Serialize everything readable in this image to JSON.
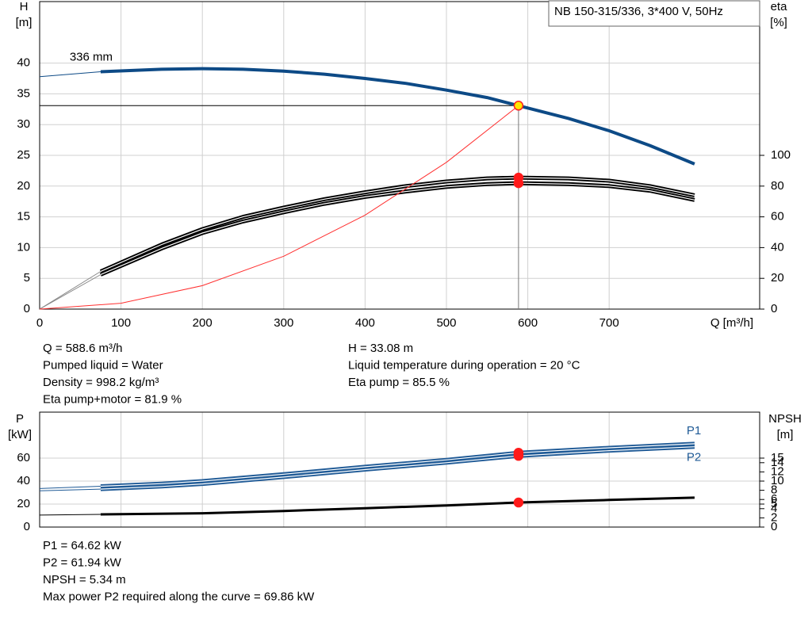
{
  "chart_data": [
    {
      "type": "line",
      "title": "NB 150-315/336, 3*400 V, 50Hz",
      "ylabel": "H",
      "yunit": "[m]",
      "y2label": "eta",
      "y2unit": "[%]",
      "xlabel": "Q [m³/h]",
      "xlim": [
        0,
        885
      ],
      "xticks": [
        0,
        100,
        200,
        300,
        400,
        500,
        600,
        700
      ],
      "show_xtick_labels": true,
      "ylim": [
        0,
        50
      ],
      "yticks": [
        0,
        5,
        10,
        15,
        20,
        25,
        30,
        35,
        40
      ],
      "y2lim": [
        0,
        200
      ],
      "y2ticks": [
        0,
        20,
        40,
        60,
        80,
        100
      ],
      "grid": true,
      "operating_q": 588.6,
      "guide_lines": true,
      "series": [
        {
          "name": "336 mm",
          "color": "#0d4a86",
          "width": 4,
          "axis": "y",
          "label_at": "start",
          "marker_color": "#ffe600",
          "marker_stroke": "#ff2020",
          "x": [
            75,
            150,
            200,
            250,
            300,
            350,
            400,
            450,
            500,
            550,
            588.6,
            650,
            700,
            750,
            805
          ],
          "values": [
            38.6,
            39.0,
            39.1,
            39.0,
            38.7,
            38.2,
            37.5,
            36.7,
            35.6,
            34.4,
            33.08,
            31.0,
            29.0,
            26.6,
            23.6
          ]
        },
        {
          "color": "#0d4a86",
          "width": 1,
          "axis": "y",
          "x": [
            0,
            75
          ],
          "values": [
            37.8,
            38.6
          ]
        },
        {
          "color": "#000000",
          "width": 5,
          "double": true,
          "axis": "y2",
          "marker_color": "#ff1a1a",
          "x": [
            75,
            150,
            200,
            250,
            300,
            350,
            400,
            450,
            500,
            550,
            588.6,
            650,
            700,
            750,
            805
          ],
          "values": [
            24.5,
            42,
            52,
            60,
            66,
            71.5,
            76,
            80,
            83,
            85,
            85.5,
            85,
            83.5,
            80,
            74
          ]
        },
        {
          "color": "#000000",
          "width": 5,
          "double": true,
          "axis": "y2",
          "marker_color": "#ff1a1a",
          "x": [
            75,
            150,
            200,
            250,
            300,
            350,
            400,
            450,
            500,
            550,
            588.6,
            650,
            700,
            750,
            805
          ],
          "values": [
            22.4,
            39.5,
            49.5,
            57,
            63,
            68.5,
            73,
            76.5,
            79.5,
            81.3,
            81.9,
            81.3,
            80,
            77,
            71
          ]
        },
        {
          "color": "#888888",
          "width": 1,
          "axis": "y2",
          "x": [
            0,
            75
          ],
          "values": [
            0,
            24.5
          ]
        },
        {
          "color": "#888888",
          "width": 1,
          "axis": "y2",
          "x": [
            0,
            75
          ],
          "values": [
            0,
            22.4
          ]
        },
        {
          "color": "#ff3030",
          "width": 1,
          "axis": "y",
          "x": [
            0,
            100,
            200,
            300,
            400,
            500,
            588.6
          ],
          "values": [
            0,
            0.95,
            3.82,
            8.59,
            15.28,
            23.87,
            33.08
          ]
        }
      ]
    },
    {
      "type": "line",
      "ylabel": "P",
      "yunit": "[kW]",
      "y2label": "NPSH",
      "y2unit": "[m]",
      "xlim": [
        0,
        885
      ],
      "xticks": [
        0,
        100,
        200,
        300,
        400,
        500,
        600,
        700
      ],
      "show_xtick_labels": false,
      "ylim": [
        0,
        100
      ],
      "yticks": [
        0,
        20,
        40,
        60
      ],
      "y2lim": [
        0,
        25
      ],
      "y2ticks": [
        0,
        2,
        4,
        5,
        6,
        8,
        10,
        12,
        14,
        15
      ],
      "grid": true,
      "operating_q": 588.6,
      "guide_lines": false,
      "series": [
        {
          "name": "P1",
          "color": "#1f5a96",
          "width": 5,
          "double": true,
          "axis": "y",
          "label_at": "end-above",
          "marker_color": "#ff1a1a",
          "x": [
            75,
            150,
            200,
            300,
            400,
            500,
            588.6,
            700,
            805
          ],
          "values": [
            35.5,
            37.8,
            40,
            46,
            52.5,
            58.5,
            64.62,
            69,
            72.5
          ]
        },
        {
          "name": "P2",
          "color": "#1f5a96",
          "width": 5,
          "double": true,
          "axis": "y",
          "label_at": "end-below",
          "marker_color": "#ff1a1a",
          "x": [
            75,
            150,
            200,
            300,
            400,
            500,
            588.6,
            700,
            805
          ],
          "values": [
            33,
            35.3,
            37.5,
            43.5,
            50,
            56,
            61.94,
            66.5,
            69.86
          ]
        },
        {
          "color": "#1f5a96",
          "width": 1,
          "axis": "y",
          "x": [
            0,
            75
          ],
          "values": [
            33.5,
            35.5
          ]
        },
        {
          "color": "#1f5a96",
          "width": 1,
          "axis": "y",
          "x": [
            0,
            75
          ],
          "values": [
            31.5,
            33
          ]
        },
        {
          "color": "#000000",
          "width": 3,
          "axis": "y2",
          "marker_color": "#ff1a1a",
          "x": [
            75,
            200,
            300,
            400,
            500,
            588.6,
            700,
            805
          ],
          "values": [
            2.75,
            3.0,
            3.5,
            4.1,
            4.7,
            5.34,
            5.9,
            6.4
          ]
        },
        {
          "color": "#000000",
          "width": 1,
          "axis": "y2",
          "x": [
            0,
            75
          ],
          "values": [
            2.6,
            2.75
          ]
        }
      ]
    }
  ],
  "readout_top": {
    "left": [
      "Q = 588.6 m³/h",
      "Pumped liquid = Water",
      "Density = 998.2 kg/m³",
      "Eta pump+motor = 81.9 %"
    ],
    "right": [
      "H = 33.08 m",
      "Liquid temperature during operation = 20 °C",
      "Eta pump = 85.5 %"
    ]
  },
  "readout_bottom": [
    "P1 = 64.62 kW",
    "P2 = 61.94 kW",
    "NPSH = 5.34 m",
    "Max power P2 required along the curve = 69.86 kW"
  ]
}
